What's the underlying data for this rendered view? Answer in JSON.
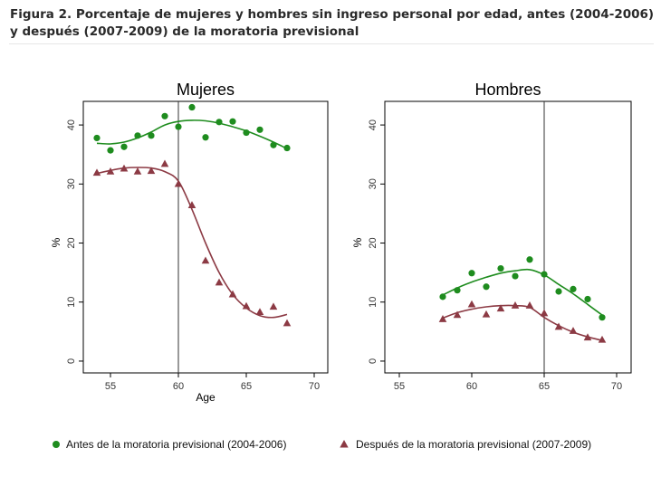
{
  "figure_title": "Figura 2. Porcentaje de mujeres y hombres sin ingreso personal por edad, antes (2004-2006) y después (2007-2009) de la moratoria previsional",
  "colors": {
    "before": "#1e8c1e",
    "after": "#8c3a44",
    "axis": "#000000",
    "frame": "#000000",
    "background": "#ffffff"
  },
  "legend": {
    "placement": "bottom",
    "items": [
      {
        "label": "Antes de la moratoria previsional (2004-2006)",
        "marker": "circle",
        "color": "#1e8c1e"
      },
      {
        "label": "Después de la moratoria previsional (2007-2009)",
        "marker": "triangle",
        "color": "#8c3a44"
      }
    ]
  },
  "chart_data": [
    {
      "type": "scatter",
      "title": "Mujeres",
      "xlabel": "Age",
      "ylabel": "%",
      "xlim": [
        53,
        71
      ],
      "ylim": [
        -2,
        44
      ],
      "xticks": [
        55,
        60,
        65,
        70
      ],
      "yticks": [
        0,
        10,
        20,
        30,
        40
      ],
      "vline": 60,
      "grid": false,
      "series": [
        {
          "key": "before",
          "marker": "circle",
          "points": [
            [
              54,
              37.8
            ],
            [
              55,
              35.7
            ],
            [
              56,
              36.3
            ],
            [
              57,
              38.2
            ],
            [
              58,
              38.2
            ],
            [
              59,
              41.5
            ],
            [
              60,
              39.7
            ],
            [
              61,
              43.0
            ],
            [
              62,
              37.9
            ],
            [
              63,
              40.5
            ],
            [
              64,
              40.6
            ],
            [
              65,
              38.7
            ],
            [
              66,
              39.2
            ],
            [
              67,
              36.6
            ],
            [
              68,
              36.1
            ]
          ],
          "fit": [
            [
              54,
              36.9
            ],
            [
              55,
              36.8
            ],
            [
              56,
              37.1
            ],
            [
              57,
              37.8
            ],
            [
              58,
              38.8
            ],
            [
              59,
              40.0
            ],
            [
              60,
              40.6
            ],
            [
              61,
              40.8
            ],
            [
              62,
              40.7
            ],
            [
              63,
              40.3
            ],
            [
              64,
              39.7
            ],
            [
              65,
              39.0
            ],
            [
              66,
              38.1
            ],
            [
              67,
              37.1
            ],
            [
              68,
              36.0
            ]
          ]
        },
        {
          "key": "after",
          "marker": "triangle",
          "points": [
            [
              54,
              31.9
            ],
            [
              55,
              32.1
            ],
            [
              56,
              32.6
            ],
            [
              57,
              32.1
            ],
            [
              58,
              32.2
            ],
            [
              59,
              33.4
            ],
            [
              60,
              30.0
            ],
            [
              61,
              26.4
            ],
            [
              62,
              17.0
            ],
            [
              63,
              13.3
            ],
            [
              64,
              11.3
            ],
            [
              65,
              9.3
            ],
            [
              66,
              8.3
            ],
            [
              67,
              9.2
            ],
            [
              68,
              6.4
            ]
          ],
          "fit": [
            [
              54,
              31.8
            ],
            [
              55,
              32.3
            ],
            [
              56,
              32.7
            ],
            [
              57,
              32.8
            ],
            [
              58,
              32.7
            ],
            [
              59,
              32.1
            ],
            [
              60,
              30.5
            ],
            [
              61,
              25.7
            ],
            [
              62,
              20.0
            ],
            [
              63,
              15.0
            ],
            [
              64,
              11.3
            ],
            [
              65,
              9.0
            ],
            [
              66,
              7.7
            ],
            [
              67,
              7.4
            ],
            [
              68,
              7.9
            ]
          ]
        }
      ]
    },
    {
      "type": "scatter",
      "title": "Hombres",
      "xlabel": "",
      "ylabel": "%",
      "xlim": [
        54,
        71
      ],
      "ylim": [
        -2,
        44
      ],
      "xticks": [
        55,
        60,
        65,
        70
      ],
      "yticks": [
        0,
        10,
        20,
        30,
        40
      ],
      "vline": 65,
      "grid": false,
      "series": [
        {
          "key": "before",
          "marker": "circle",
          "points": [
            [
              58,
              10.9
            ],
            [
              59,
              12.0
            ],
            [
              60,
              14.9
            ],
            [
              61,
              12.6
            ],
            [
              62,
              15.7
            ],
            [
              63,
              14.4
            ],
            [
              64,
              17.2
            ],
            [
              65,
              14.7
            ],
            [
              66,
              11.8
            ],
            [
              67,
              12.2
            ],
            [
              68,
              10.5
            ],
            [
              69,
              7.4
            ]
          ],
          "fit": [
            [
              58,
              11.2
            ],
            [
              59,
              12.4
            ],
            [
              60,
              13.4
            ],
            [
              61,
              14.2
            ],
            [
              62,
              14.9
            ],
            [
              63,
              15.3
            ],
            [
              64,
              15.5
            ],
            [
              65,
              14.6
            ],
            [
              66,
              13.0
            ],
            [
              67,
              11.4
            ],
            [
              68,
              9.6
            ],
            [
              69,
              7.8
            ]
          ]
        },
        {
          "key": "after",
          "marker": "triangle",
          "points": [
            [
              58,
              7.1
            ],
            [
              59,
              7.8
            ],
            [
              60,
              9.6
            ],
            [
              61,
              7.9
            ],
            [
              62,
              8.9
            ],
            [
              63,
              9.4
            ],
            [
              64,
              9.4
            ],
            [
              65,
              8.1
            ],
            [
              66,
              5.8
            ],
            [
              67,
              5.1
            ],
            [
              68,
              4.0
            ],
            [
              69,
              3.6
            ]
          ],
          "fit": [
            [
              58,
              7.3
            ],
            [
              59,
              8.2
            ],
            [
              60,
              8.8
            ],
            [
              61,
              9.2
            ],
            [
              62,
              9.4
            ],
            [
              63,
              9.4
            ],
            [
              64,
              9.1
            ],
            [
              65,
              7.4
            ],
            [
              66,
              6.0
            ],
            [
              67,
              4.9
            ],
            [
              68,
              4.1
            ],
            [
              69,
              3.5
            ]
          ]
        }
      ]
    }
  ]
}
